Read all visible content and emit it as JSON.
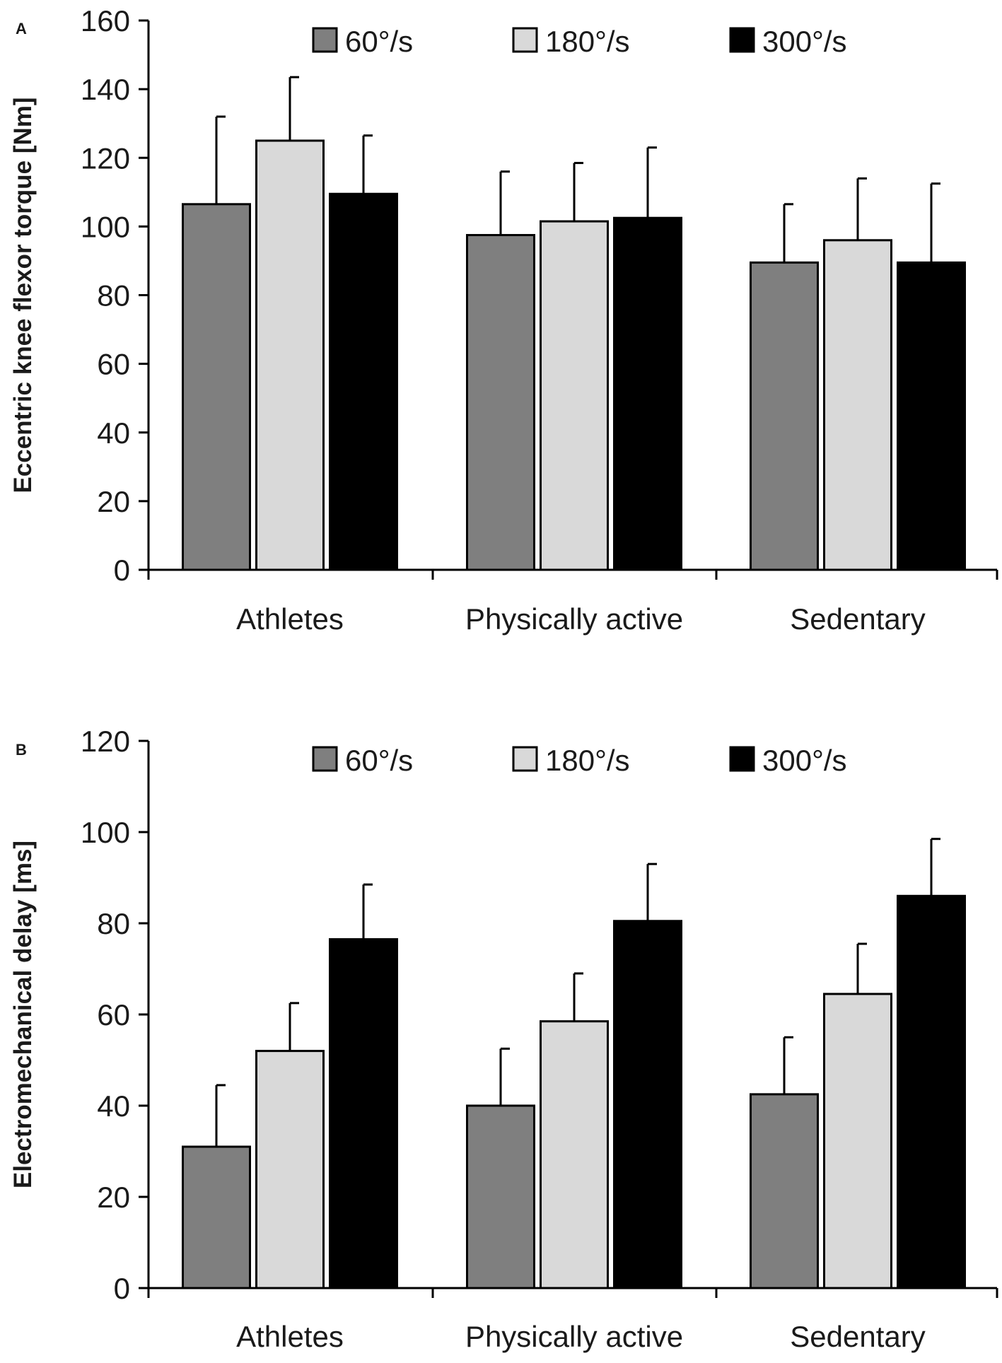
{
  "colors": {
    "s60": "#7f7f7f",
    "s180": "#d9d9d9",
    "s300": "#000000",
    "axis": "#000000",
    "text": "#1a1a1a"
  },
  "chart_data": [
    {
      "panel_label": "A",
      "type": "bar",
      "categories": [
        "Athletes",
        "Physically active",
        "Sedentary"
      ],
      "series": [
        {
          "name": "60°/s",
          "values": [
            106.5,
            97.5,
            89.5
          ],
          "errors": [
            25.5,
            18.5,
            17
          ]
        },
        {
          "name": "180°/s",
          "values": [
            125,
            101.5,
            96
          ],
          "errors": [
            18.5,
            17,
            18
          ]
        },
        {
          "name": "300°/s",
          "values": [
            109.5,
            102.5,
            89.5
          ],
          "errors": [
            17,
            20.5,
            23
          ]
        }
      ],
      "ylabel": "Eccentric knee flexor torque [Nm]",
      "xlabel": "",
      "ylim": [
        0,
        160
      ],
      "yticks": [
        0,
        20,
        40,
        60,
        80,
        100,
        120,
        140,
        160
      ],
      "legend": "top-center"
    },
    {
      "panel_label": "B",
      "type": "bar",
      "categories": [
        "Athletes",
        "Physically active",
        "Sedentary"
      ],
      "series": [
        {
          "name": "60°/s",
          "values": [
            31,
            40,
            42.5
          ],
          "errors": [
            13.5,
            12.5,
            12.5
          ]
        },
        {
          "name": "180°/s",
          "values": [
            52,
            58.5,
            64.5
          ],
          "errors": [
            10.5,
            10.5,
            11
          ]
        },
        {
          "name": "300°/s",
          "values": [
            76.5,
            80.5,
            86
          ],
          "errors": [
            12,
            12.5,
            12.5
          ]
        }
      ],
      "ylabel": "Electromechanical delay [ms]",
      "xlabel": "",
      "ylim": [
        0,
        120
      ],
      "yticks": [
        0,
        20,
        40,
        60,
        80,
        100,
        120
      ],
      "legend": "top-center"
    }
  ]
}
